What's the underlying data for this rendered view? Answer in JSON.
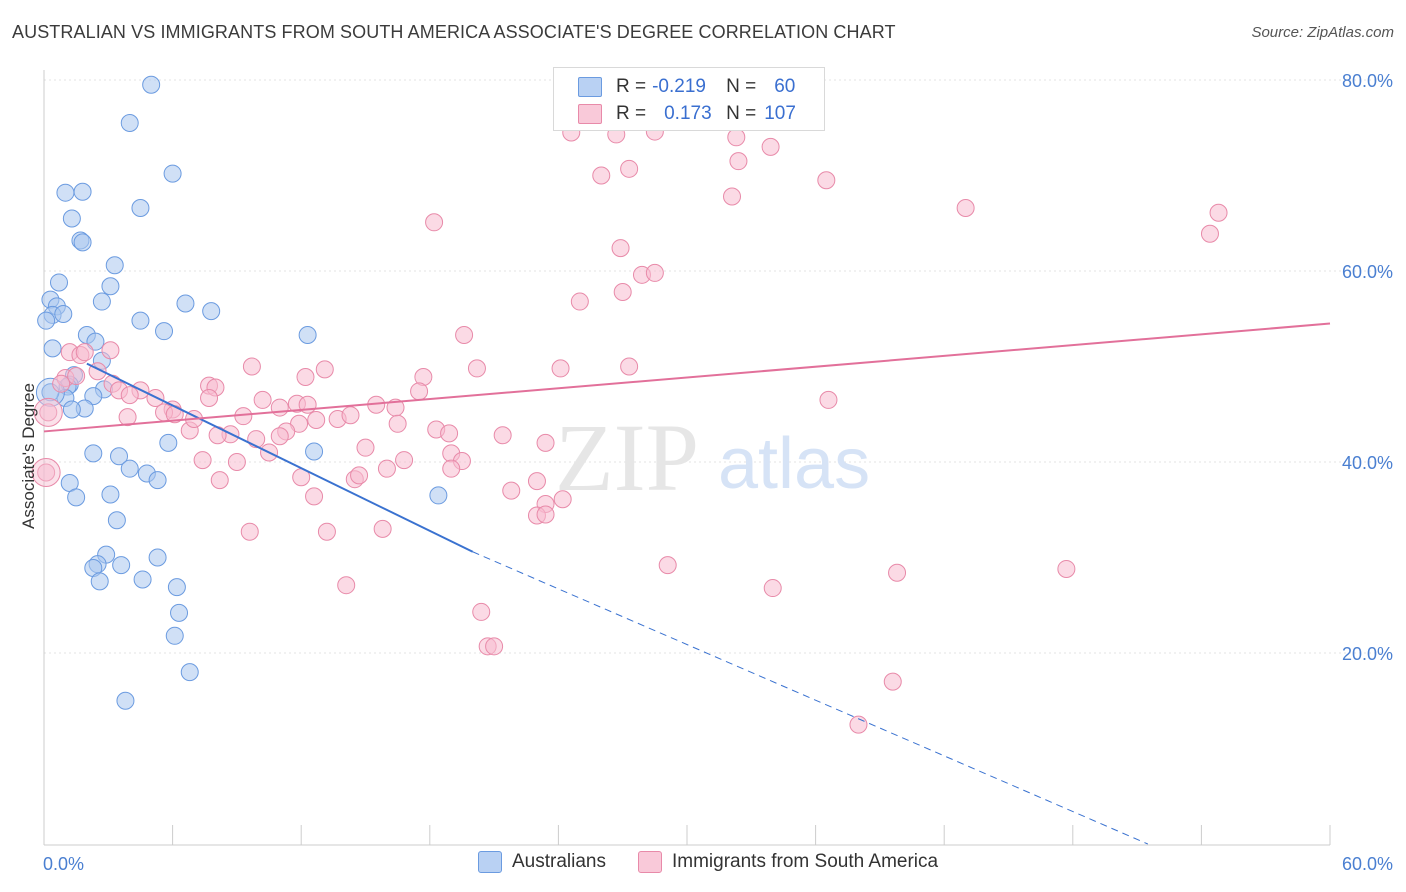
{
  "title": "AUSTRALIAN VS IMMIGRANTS FROM SOUTH AMERICA ASSOCIATE'S DEGREE CORRELATION CHART",
  "source": "Source: ZipAtlas.com",
  "watermark": {
    "zip": "ZIP",
    "atlas": "atlas"
  },
  "legend": {
    "rows": [
      {
        "r_label": "R =",
        "r_value": "-0.219",
        "n_label": "N =",
        "n_value": "60",
        "color": "#a9c6ee",
        "border": "#6b9be0"
      },
      {
        "r_label": "R =",
        "r_value": "0.173",
        "n_label": "N =",
        "n_value": "107",
        "color": "#f7bcd0",
        "border": "#e88aa9"
      }
    ]
  },
  "bottom_legend": [
    {
      "label": "Australians",
      "color": "#b9d1f3",
      "border": "#6b9be0"
    },
    {
      "label": "Immigrants from South America",
      "color": "#f9c9d9",
      "border": "#e88aa9"
    }
  ],
  "chart_data": {
    "type": "scatter",
    "title": "AUSTRALIAN VS IMMIGRANTS FROM SOUTH AMERICA ASSOCIATE'S DEGREE CORRELATION CHART",
    "xlabel": "",
    "ylabel": "Associate's Degree",
    "xlim": [
      0,
      60
    ],
    "ylim": [
      0,
      82
    ],
    "x_ticks": [
      {
        "value": 0,
        "label": "0.0%"
      },
      {
        "value": 60,
        "label": "60.0%"
      }
    ],
    "y_ticks": [
      {
        "value": 20,
        "label": "20.0%"
      },
      {
        "value": 40,
        "label": "40.0%"
      },
      {
        "value": 60,
        "label": "60.0%"
      },
      {
        "value": 80,
        "label": "80.0%"
      }
    ],
    "grid": true,
    "series": [
      {
        "name": "Australians",
        "color": "#6b9be0",
        "fill": "#a9c6ee",
        "trend": {
          "x0": 2,
          "y0": 50.3,
          "x1": 20,
          "y1": 30.6,
          "dash_to_x": 51.5,
          "dash_to_y": 0
        },
        "points": [
          [
            5.0,
            79.5
          ],
          [
            4.0,
            75.5
          ],
          [
            1.0,
            68.2
          ],
          [
            1.8,
            68.3
          ],
          [
            6.0,
            70.2
          ],
          [
            4.5,
            66.6
          ],
          [
            1.3,
            65.5
          ],
          [
            1.7,
            63.2
          ],
          [
            1.8,
            63.0
          ],
          [
            3.3,
            60.6
          ],
          [
            0.7,
            58.8
          ],
          [
            3.1,
            58.4
          ],
          [
            0.3,
            57.0
          ],
          [
            2.7,
            56.8
          ],
          [
            6.6,
            56.6
          ],
          [
            7.8,
            55.8
          ],
          [
            0.6,
            56.3
          ],
          [
            0.4,
            55.4
          ],
          [
            0.9,
            55.5
          ],
          [
            0.1,
            54.8
          ],
          [
            4.5,
            54.8
          ],
          [
            5.6,
            53.7
          ],
          [
            12.3,
            53.3
          ],
          [
            2.0,
            53.3
          ],
          [
            2.4,
            52.6
          ],
          [
            0.4,
            51.9
          ],
          [
            2.7,
            50.6
          ],
          [
            1.4,
            49.1
          ],
          [
            1.2,
            48.1
          ],
          [
            1.1,
            47.9
          ],
          [
            2.8,
            47.6
          ],
          [
            1.0,
            46.7
          ],
          [
            2.3,
            46.9
          ],
          [
            1.9,
            45.6
          ],
          [
            1.3,
            45.5
          ],
          [
            5.8,
            42.0
          ],
          [
            12.6,
            41.1
          ],
          [
            2.3,
            40.9
          ],
          [
            3.5,
            40.6
          ],
          [
            4.0,
            39.3
          ],
          [
            4.8,
            38.8
          ],
          [
            1.2,
            37.8
          ],
          [
            5.3,
            38.1
          ],
          [
            18.4,
            36.5
          ],
          [
            1.5,
            36.3
          ],
          [
            3.1,
            36.6
          ],
          [
            3.4,
            33.9
          ],
          [
            2.9,
            30.3
          ],
          [
            5.3,
            30.0
          ],
          [
            2.5,
            29.3
          ],
          [
            3.6,
            29.2
          ],
          [
            2.3,
            28.9
          ],
          [
            4.6,
            27.7
          ],
          [
            2.6,
            27.5
          ],
          [
            6.2,
            26.9
          ],
          [
            6.3,
            24.2
          ],
          [
            6.1,
            21.8
          ],
          [
            6.8,
            18.0
          ],
          [
            3.8,
            15.0
          ],
          [
            0.3,
            47.3
          ]
        ]
      },
      {
        "name": "Immigrants from South America",
        "color": "#e88aa9",
        "fill": "#f7bcd0",
        "trend": {
          "x0": 0,
          "y0": 43.2,
          "x1": 60,
          "y1": 54.5
        },
        "points": [
          [
            24.6,
            74.5
          ],
          [
            26.7,
            74.3
          ],
          [
            28.5,
            74.6
          ],
          [
            32.3,
            74.0
          ],
          [
            33.9,
            73.0
          ],
          [
            32.4,
            71.5
          ],
          [
            26.0,
            70.0
          ],
          [
            27.3,
            70.7
          ],
          [
            36.5,
            69.5
          ],
          [
            32.1,
            67.8
          ],
          [
            43.0,
            66.6
          ],
          [
            54.8,
            66.1
          ],
          [
            18.2,
            65.1
          ],
          [
            54.4,
            63.9
          ],
          [
            26.9,
            62.4
          ],
          [
            27.9,
            59.6
          ],
          [
            25.0,
            56.8
          ],
          [
            27.0,
            57.8
          ],
          [
            19.6,
            53.3
          ],
          [
            1.2,
            51.5
          ],
          [
            1.7,
            51.2
          ],
          [
            1.9,
            51.5
          ],
          [
            3.1,
            51.7
          ],
          [
            9.7,
            50.0
          ],
          [
            13.1,
            49.7
          ],
          [
            20.2,
            49.8
          ],
          [
            24.1,
            49.8
          ],
          [
            27.3,
            50.0
          ],
          [
            1.0,
            48.8
          ],
          [
            1.5,
            49.0
          ],
          [
            2.5,
            49.5
          ],
          [
            3.2,
            48.2
          ],
          [
            7.7,
            48.0
          ],
          [
            8.0,
            47.8
          ],
          [
            3.5,
            47.5
          ],
          [
            4.5,
            47.5
          ],
          [
            5.2,
            46.7
          ],
          [
            7.7,
            46.7
          ],
          [
            10.2,
            46.5
          ],
          [
            11.8,
            46.1
          ],
          [
            12.2,
            48.9
          ],
          [
            17.7,
            48.9
          ],
          [
            17.5,
            47.4
          ],
          [
            6.0,
            45.5
          ],
          [
            5.6,
            45.2
          ],
          [
            6.1,
            45.0
          ],
          [
            3.9,
            44.7
          ],
          [
            9.3,
            44.8
          ],
          [
            11.9,
            44.0
          ],
          [
            12.7,
            44.4
          ],
          [
            13.7,
            44.5
          ],
          [
            14.3,
            44.9
          ],
          [
            15.5,
            46.0
          ],
          [
            16.4,
            45.7
          ],
          [
            36.6,
            46.5
          ],
          [
            11.0,
            45.7
          ],
          [
            18.3,
            43.4
          ],
          [
            18.9,
            43.0
          ],
          [
            6.8,
            43.3
          ],
          [
            8.7,
            42.9
          ],
          [
            11.3,
            43.2
          ],
          [
            9.9,
            42.4
          ],
          [
            11.0,
            42.7
          ],
          [
            8.1,
            42.8
          ],
          [
            15.0,
            41.5
          ],
          [
            16.8,
            40.2
          ],
          [
            19.0,
            40.9
          ],
          [
            19.5,
            40.1
          ],
          [
            21.4,
            42.8
          ],
          [
            23.4,
            42.0
          ],
          [
            21.8,
            37.0
          ],
          [
            23.4,
            35.6
          ],
          [
            24.2,
            36.1
          ],
          [
            23.0,
            34.4
          ],
          [
            23.4,
            34.5
          ],
          [
            7.4,
            40.2
          ],
          [
            9.0,
            40.0
          ],
          [
            8.2,
            38.1
          ],
          [
            12.0,
            38.4
          ],
          [
            14.5,
            38.2
          ],
          [
            14.7,
            38.6
          ],
          [
            16.0,
            39.3
          ],
          [
            19.0,
            39.3
          ],
          [
            12.6,
            36.4
          ],
          [
            9.6,
            32.7
          ],
          [
            13.2,
            32.7
          ],
          [
            15.8,
            33.0
          ],
          [
            29.1,
            29.2
          ],
          [
            34.0,
            26.8
          ],
          [
            39.8,
            28.4
          ],
          [
            47.7,
            28.8
          ],
          [
            14.1,
            27.1
          ],
          [
            20.4,
            24.3
          ],
          [
            20.7,
            20.7
          ],
          [
            21.0,
            20.7
          ],
          [
            39.6,
            17.0
          ],
          [
            38.0,
            12.5
          ],
          [
            0.2,
            45.2
          ],
          [
            0.1,
            38.9
          ],
          [
            0.8,
            48.2
          ],
          [
            4.0,
            47.0
          ],
          [
            12.3,
            46.0
          ],
          [
            7.0,
            44.5
          ],
          [
            28.5,
            59.8
          ],
          [
            23.0,
            38.0
          ],
          [
            16.5,
            44.0
          ],
          [
            10.5,
            41.0
          ]
        ]
      }
    ]
  }
}
